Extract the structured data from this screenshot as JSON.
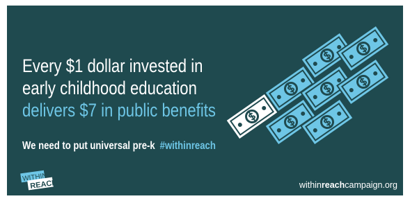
{
  "headline": {
    "lines": [
      "Every $1 dollar invested in",
      "early childhood education"
    ],
    "highlight": "delivers $7 in public benefits"
  },
  "tagline": {
    "text": "We need to put universal pre-k",
    "hashtag": "#withinreach"
  },
  "logo": {
    "line1": "WITHIN",
    "line2": "REACH"
  },
  "url": {
    "prefix": "within",
    "bold": "reach",
    "suffix": "campaign.org"
  }
}
